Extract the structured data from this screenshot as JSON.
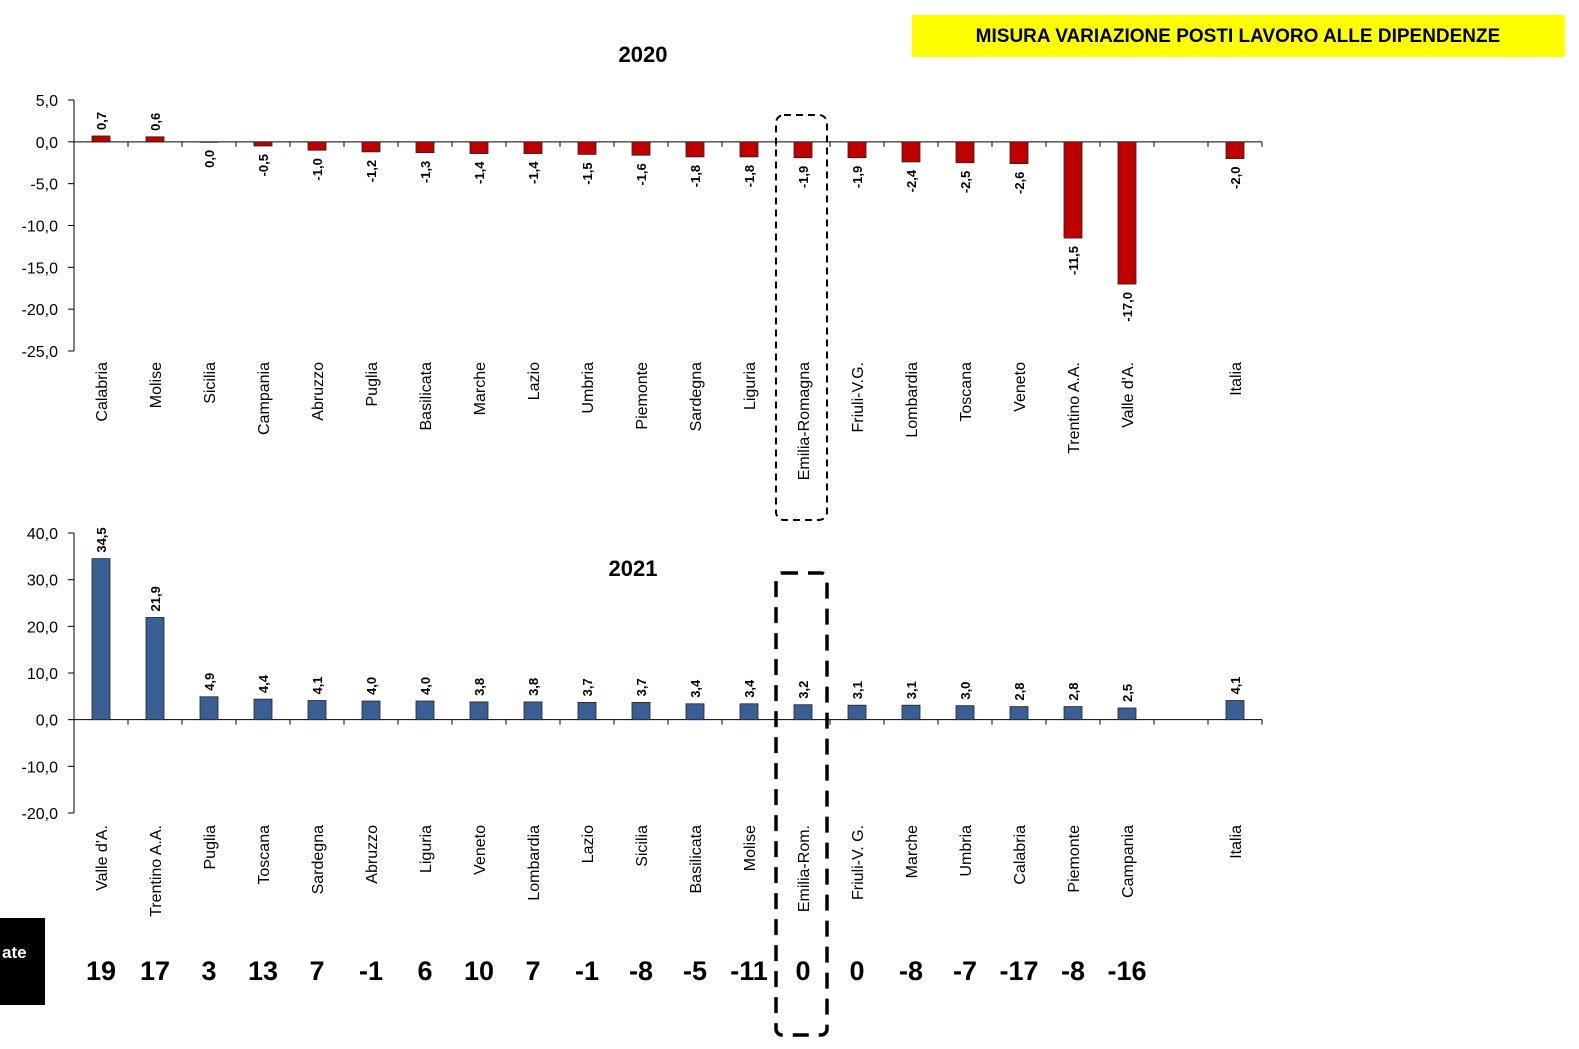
{
  "banner": "MISURA VARIAZIONE POSTI LAVORO ALLE DIPENDENZE",
  "side_label": "ate",
  "bottom_row": [
    19,
    17,
    3,
    13,
    7,
    -1,
    6,
    10,
    7,
    -1,
    -8,
    -5,
    -11,
    0,
    0,
    -8,
    -7,
    -17,
    -8,
    -16
  ],
  "chart_data": [
    {
      "type": "bar",
      "title": "2020",
      "color": "#c00000",
      "categories": [
        "Calabria",
        "Molise",
        "Sicilia",
        "Campania",
        "Abruzzo",
        "Puglia",
        "Basilicata",
        "Marche",
        "Lazio",
        "Umbria",
        "Piemonte",
        "Sardegna",
        "Liguria",
        "Emilia-Romagna",
        "Friuli-V.G.",
        "Lombardia",
        "Toscana",
        "Veneto",
        "Trentino A.A.",
        "Valle d'A.",
        null,
        "Italia"
      ],
      "values": [
        0.7,
        0.6,
        0.0,
        -0.5,
        -1.0,
        -1.2,
        -1.3,
        -1.4,
        -1.4,
        -1.5,
        -1.6,
        -1.8,
        -1.8,
        -1.9,
        -1.9,
        -2.4,
        -2.5,
        -2.6,
        -11.5,
        -17.0,
        null,
        -2.0
      ],
      "value_labels": [
        "0,7",
        "0,6",
        "0,0",
        "-0,5",
        "-1,0",
        "-1,2",
        "-1,3",
        "-1,4",
        "-1,4",
        "-1,5",
        "-1,6",
        "-1,8",
        "-1,8",
        "-1,9",
        "-1,9",
        "-2,4",
        "-2,5",
        "-2,6",
        "-11,5",
        "-17,0",
        null,
        "-2,0"
      ],
      "ylim": [
        -25,
        5
      ],
      "yticks": [
        {
          "value": 5,
          "label": "5,0"
        },
        {
          "value": 0,
          "label": "0,0"
        },
        {
          "value": -5,
          "label": "-5,0"
        },
        {
          "value": -10,
          "label": "-10,0"
        },
        {
          "value": -15,
          "label": "-15,0"
        },
        {
          "value": -20,
          "label": "-20,0"
        },
        {
          "value": -25,
          "label": "-25,0"
        }
      ]
    },
    {
      "type": "bar",
      "title": "2021",
      "color": "#3a5f94",
      "categories": [
        "Valle d'A.",
        "Trentino A.A.",
        "Puglia",
        "Toscana",
        "Sardegna",
        "Abruzzo",
        "Liguria",
        "Veneto",
        "Lombardia",
        "Lazio",
        "Sicilia",
        "Basilicata",
        "Molise",
        "Emilia-Rom.",
        "Friuli-V. G.",
        "Marche",
        "Umbria",
        "Calabria",
        "Piemonte",
        "Campania",
        null,
        "Italia"
      ],
      "values": [
        34.5,
        21.9,
        4.9,
        4.4,
        4.1,
        4.0,
        4.0,
        3.8,
        3.8,
        3.7,
        3.7,
        3.4,
        3.4,
        3.2,
        3.1,
        3.1,
        3.0,
        2.8,
        2.8,
        2.5,
        null,
        4.1
      ],
      "value_labels": [
        "34,5",
        "21,9",
        "4,9",
        "4,4",
        "4,1",
        "4,0",
        "4,0",
        "3,8",
        "3,8",
        "3,7",
        "3,7",
        "3,4",
        "3,4",
        "3,2",
        "3,1",
        "3,1",
        "3,0",
        "2,8",
        "2,8",
        "2,5",
        null,
        "4,1"
      ],
      "ylim": [
        -20,
        40
      ],
      "yticks": [
        {
          "value": 40,
          "label": "40,0"
        },
        {
          "value": 30,
          "label": "30,0"
        },
        {
          "value": 20,
          "label": "20,0"
        },
        {
          "value": 10,
          "label": "10,0"
        },
        {
          "value": 0,
          "label": "0,0"
        },
        {
          "value": -10,
          "label": "-10,0"
        },
        {
          "value": -20,
          "label": "-20,0"
        }
      ]
    }
  ]
}
